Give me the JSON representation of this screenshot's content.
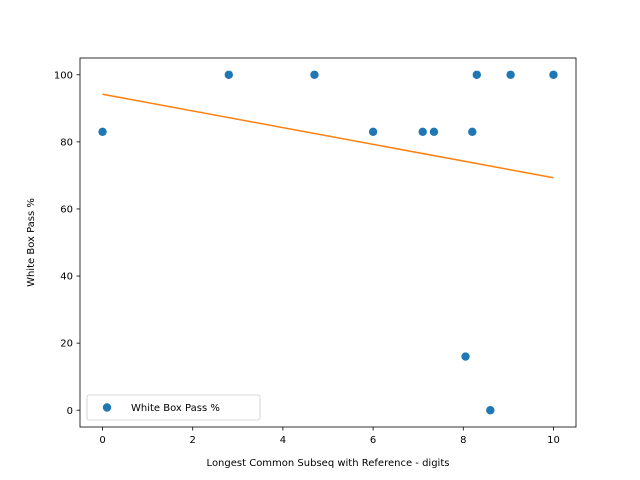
{
  "chart_data": {
    "type": "scatter",
    "title": "",
    "xlabel": "Longest Common Subseq with Reference - digits",
    "ylabel": "White Box Pass %",
    "xlim": [
      -0.5,
      10.5
    ],
    "ylim": [
      -5,
      105
    ],
    "xticks": [
      0,
      2,
      4,
      6,
      8,
      10
    ],
    "yticks": [
      0,
      20,
      40,
      60,
      80,
      100
    ],
    "grid": false,
    "legend_position": "lower-left",
    "series": [
      {
        "name": "White Box Pass %",
        "kind": "scatter",
        "color": "#1f77b4",
        "points": [
          {
            "x": 0.0,
            "y": 83
          },
          {
            "x": 2.8,
            "y": 100
          },
          {
            "x": 4.7,
            "y": 100
          },
          {
            "x": 6.0,
            "y": 83
          },
          {
            "x": 7.1,
            "y": 83
          },
          {
            "x": 7.35,
            "y": 83
          },
          {
            "x": 8.05,
            "y": 16
          },
          {
            "x": 8.2,
            "y": 83
          },
          {
            "x": 8.3,
            "y": 100
          },
          {
            "x": 8.6,
            "y": 0
          },
          {
            "x": 9.05,
            "y": 100
          },
          {
            "x": 10.0,
            "y": 100
          }
        ]
      },
      {
        "kind": "line",
        "color": "#ff7f0e",
        "points": [
          {
            "x": 0.0,
            "y": 94.2
          },
          {
            "x": 10.0,
            "y": 69.3
          }
        ]
      }
    ]
  }
}
